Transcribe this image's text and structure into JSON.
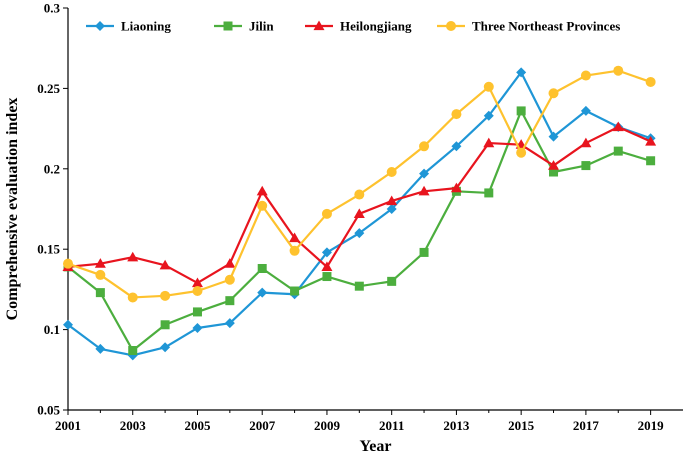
{
  "chart_data": {
    "type": "line",
    "xlabel": "Year",
    "ylabel": "Comprehensive evaluation index",
    "xlim": [
      2001,
      2020
    ],
    "ylim": [
      0.05,
      0.3
    ],
    "x_ticks": [
      2001,
      2003,
      2005,
      2007,
      2009,
      2011,
      2013,
      2015,
      2017,
      2019
    ],
    "y_ticks": [
      0.05,
      0.1,
      0.15,
      0.2,
      0.25,
      0.3
    ],
    "y_tick_labels": [
      "0.05",
      "0.1",
      "0.15",
      "0.2",
      "0.25",
      "0.3"
    ],
    "x": [
      2001,
      2002,
      2003,
      2004,
      2005,
      2006,
      2007,
      2008,
      2009,
      2010,
      2011,
      2012,
      2013,
      2014,
      2015,
      2016,
      2017,
      2018,
      2019
    ],
    "grid": false,
    "legend_position": "top",
    "series": [
      {
        "name": "Liaoning",
        "color": "#1f96d6",
        "marker": "diamond",
        "values": [
          0.103,
          0.088,
          0.084,
          0.089,
          0.101,
          0.104,
          0.123,
          0.122,
          0.148,
          0.16,
          0.175,
          0.197,
          0.214,
          0.233,
          0.26,
          0.22,
          0.236,
          0.226,
          0.219
        ]
      },
      {
        "name": "Jilin",
        "color": "#4cae3e",
        "marker": "square",
        "values": [
          0.139,
          0.123,
          0.087,
          0.103,
          0.111,
          0.118,
          0.138,
          0.124,
          0.133,
          0.127,
          0.13,
          0.148,
          0.186,
          0.185,
          0.236,
          0.198,
          0.202,
          0.211,
          0.205
        ]
      },
      {
        "name": "Heilongjiang",
        "color": "#e8141e",
        "marker": "triangle",
        "values": [
          0.139,
          0.141,
          0.145,
          0.14,
          0.129,
          0.141,
          0.186,
          0.157,
          0.139,
          0.172,
          0.18,
          0.186,
          0.188,
          0.216,
          0.215,
          0.202,
          0.216,
          0.226,
          0.217
        ]
      },
      {
        "name": "Three Northeast Provinces",
        "color": "#fec22e",
        "marker": "circle",
        "values": [
          0.141,
          0.134,
          0.12,
          0.121,
          0.124,
          0.131,
          0.177,
          0.149,
          0.172,
          0.184,
          0.198,
          0.214,
          0.234,
          0.251,
          0.21,
          0.247,
          0.258,
          0.261,
          0.254
        ]
      }
    ]
  }
}
